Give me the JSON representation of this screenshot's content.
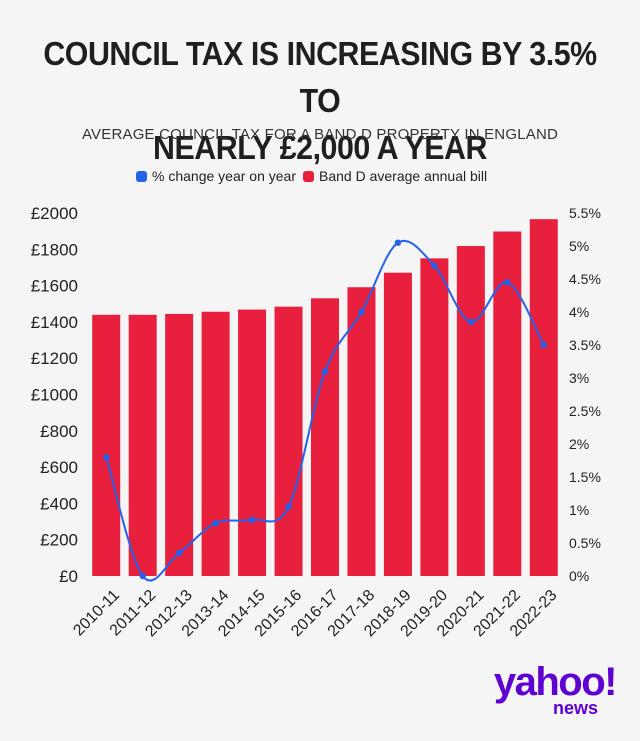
{
  "header": {
    "title_line1": "COUNCIL TAX IS INCREASING BY 3.5% TO",
    "title_line2": "NEARLY £2,000 A YEAR",
    "subtitle": "AVERAGE COUNCIL TAX FOR A BAND D PROPERTY IN ENGLAND"
  },
  "brand": {
    "name": "yahoo!",
    "sub": "news",
    "color": "#5f01d1"
  },
  "colors": {
    "bar": "#e8203d",
    "line": "#2563eb",
    "text": "#222222"
  },
  "chart_data": {
    "type": "bar",
    "categories": [
      "2010-11",
      "2011-12",
      "2012-13",
      "2013-14",
      "2014-15",
      "2015-16",
      "2016-17",
      "2017-18",
      "2018-19",
      "2019-20",
      "2020-21",
      "2021-22",
      "2022-23"
    ],
    "series": [
      {
        "name": "Band D average annual bill",
        "axis": "left",
        "type": "bar",
        "values": [
          1439,
          1439,
          1444,
          1456,
          1468,
          1484,
          1530,
          1591,
          1671,
          1750,
          1818,
          1898,
          1966
        ]
      },
      {
        "name": "% change year on year",
        "axis": "right",
        "type": "line",
        "values": [
          1.8,
          0.0,
          0.35,
          0.8,
          0.85,
          1.05,
          3.1,
          4.0,
          5.05,
          4.7,
          3.85,
          4.45,
          3.5
        ]
      }
    ],
    "legend": [
      "% change year on year",
      "Band D average annual bill"
    ],
    "legend_position": "top",
    "y_left": {
      "min": 0,
      "max": 2000,
      "step": 200,
      "ticks": [
        "£0",
        "£200",
        "£400",
        "£600",
        "£800",
        "£1000",
        "£1200",
        "£1400",
        "£1600",
        "£1800",
        "£2000"
      ]
    },
    "y_right": {
      "min": 0,
      "max": 5.5,
      "step": 0.5,
      "ticks": [
        "0%",
        "0.5%",
        "1%",
        "1.5%",
        "2%",
        "2.5%",
        "3%",
        "3.5%",
        "4%",
        "4.5%",
        "5%",
        "5.5%"
      ]
    },
    "grid": false
  }
}
